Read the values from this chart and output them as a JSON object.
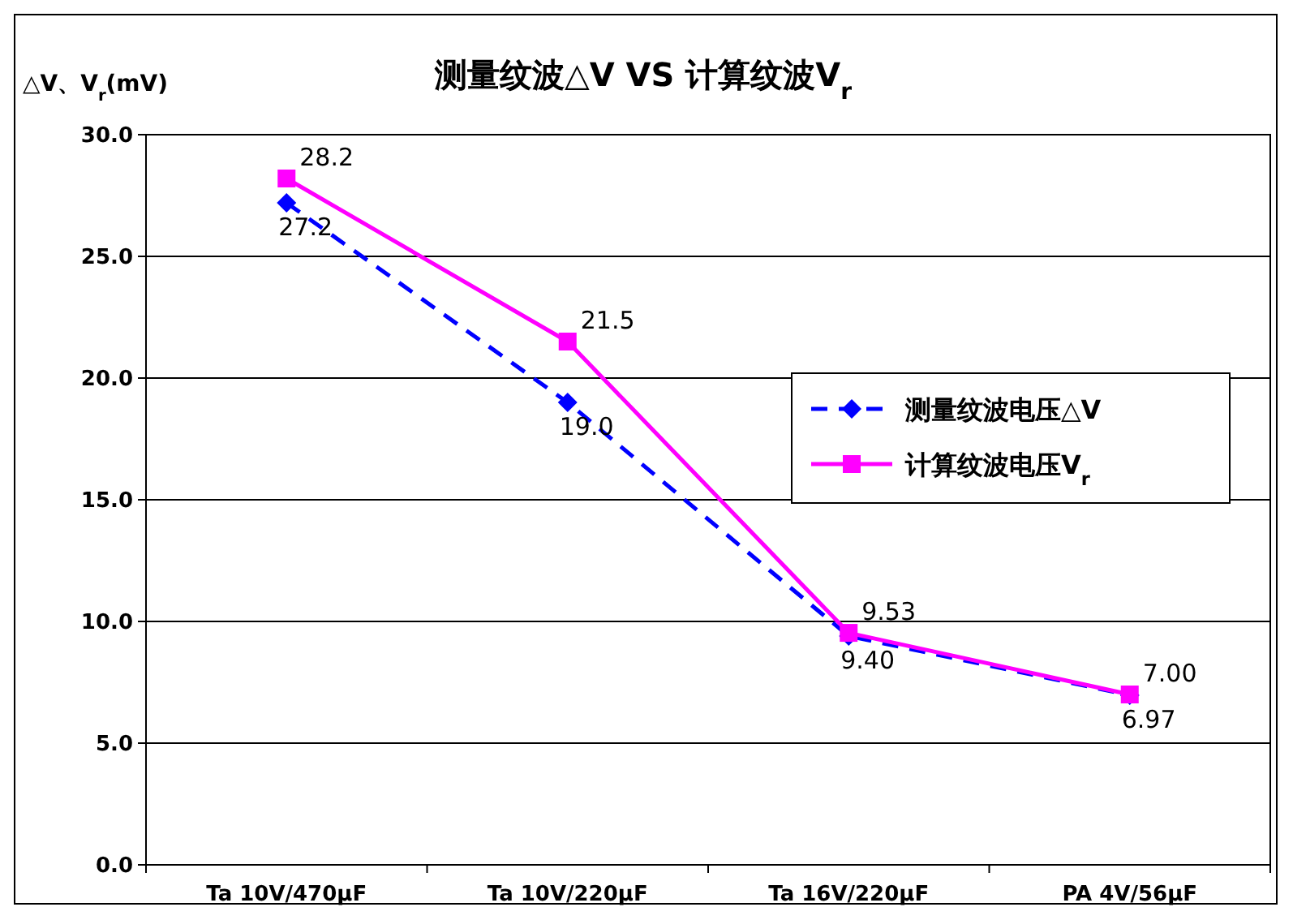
{
  "chart_data": {
    "type": "line",
    "title": "测量纹波△V VS 计算纹波V$_{r}$",
    "ylabel": "△V、V$_{r}$(mV)",
    "categories": [
      "Ta 10V/470μF",
      "Ta 10V/220μF",
      "Ta 16V/220μF",
      "PA 4V/56μF"
    ],
    "ylim": [
      0,
      30
    ],
    "yticks": [
      {
        "value": 0,
        "label": "0.0"
      },
      {
        "value": 5,
        "label": "5.0"
      },
      {
        "value": 10,
        "label": "10.0"
      },
      {
        "value": 15,
        "label": "15.0"
      },
      {
        "value": 20,
        "label": "20.0"
      },
      {
        "value": 25,
        "label": "25.0"
      },
      {
        "value": 30,
        "label": "30.0"
      }
    ],
    "grid": "y",
    "legend": "right",
    "series": [
      {
        "name": "测量纹波电压△V",
        "color": "#0000ff",
        "values": [
          27.2,
          19.0,
          9.4,
          6.97
        ],
        "value_labels": [
          "27.2",
          "19.0",
          "9.40",
          "6.97"
        ],
        "marker": "diamond",
        "line_style": "dashed"
      },
      {
        "name": "计算纹波电压V$_{r}$",
        "color": "#ff00ff",
        "values": [
          28.2,
          21.5,
          9.53,
          7.0
        ],
        "value_labels": [
          "28.2",
          "21.5",
          "9.53",
          "7.00"
        ],
        "marker": "square",
        "line_style": "solid"
      }
    ]
  }
}
